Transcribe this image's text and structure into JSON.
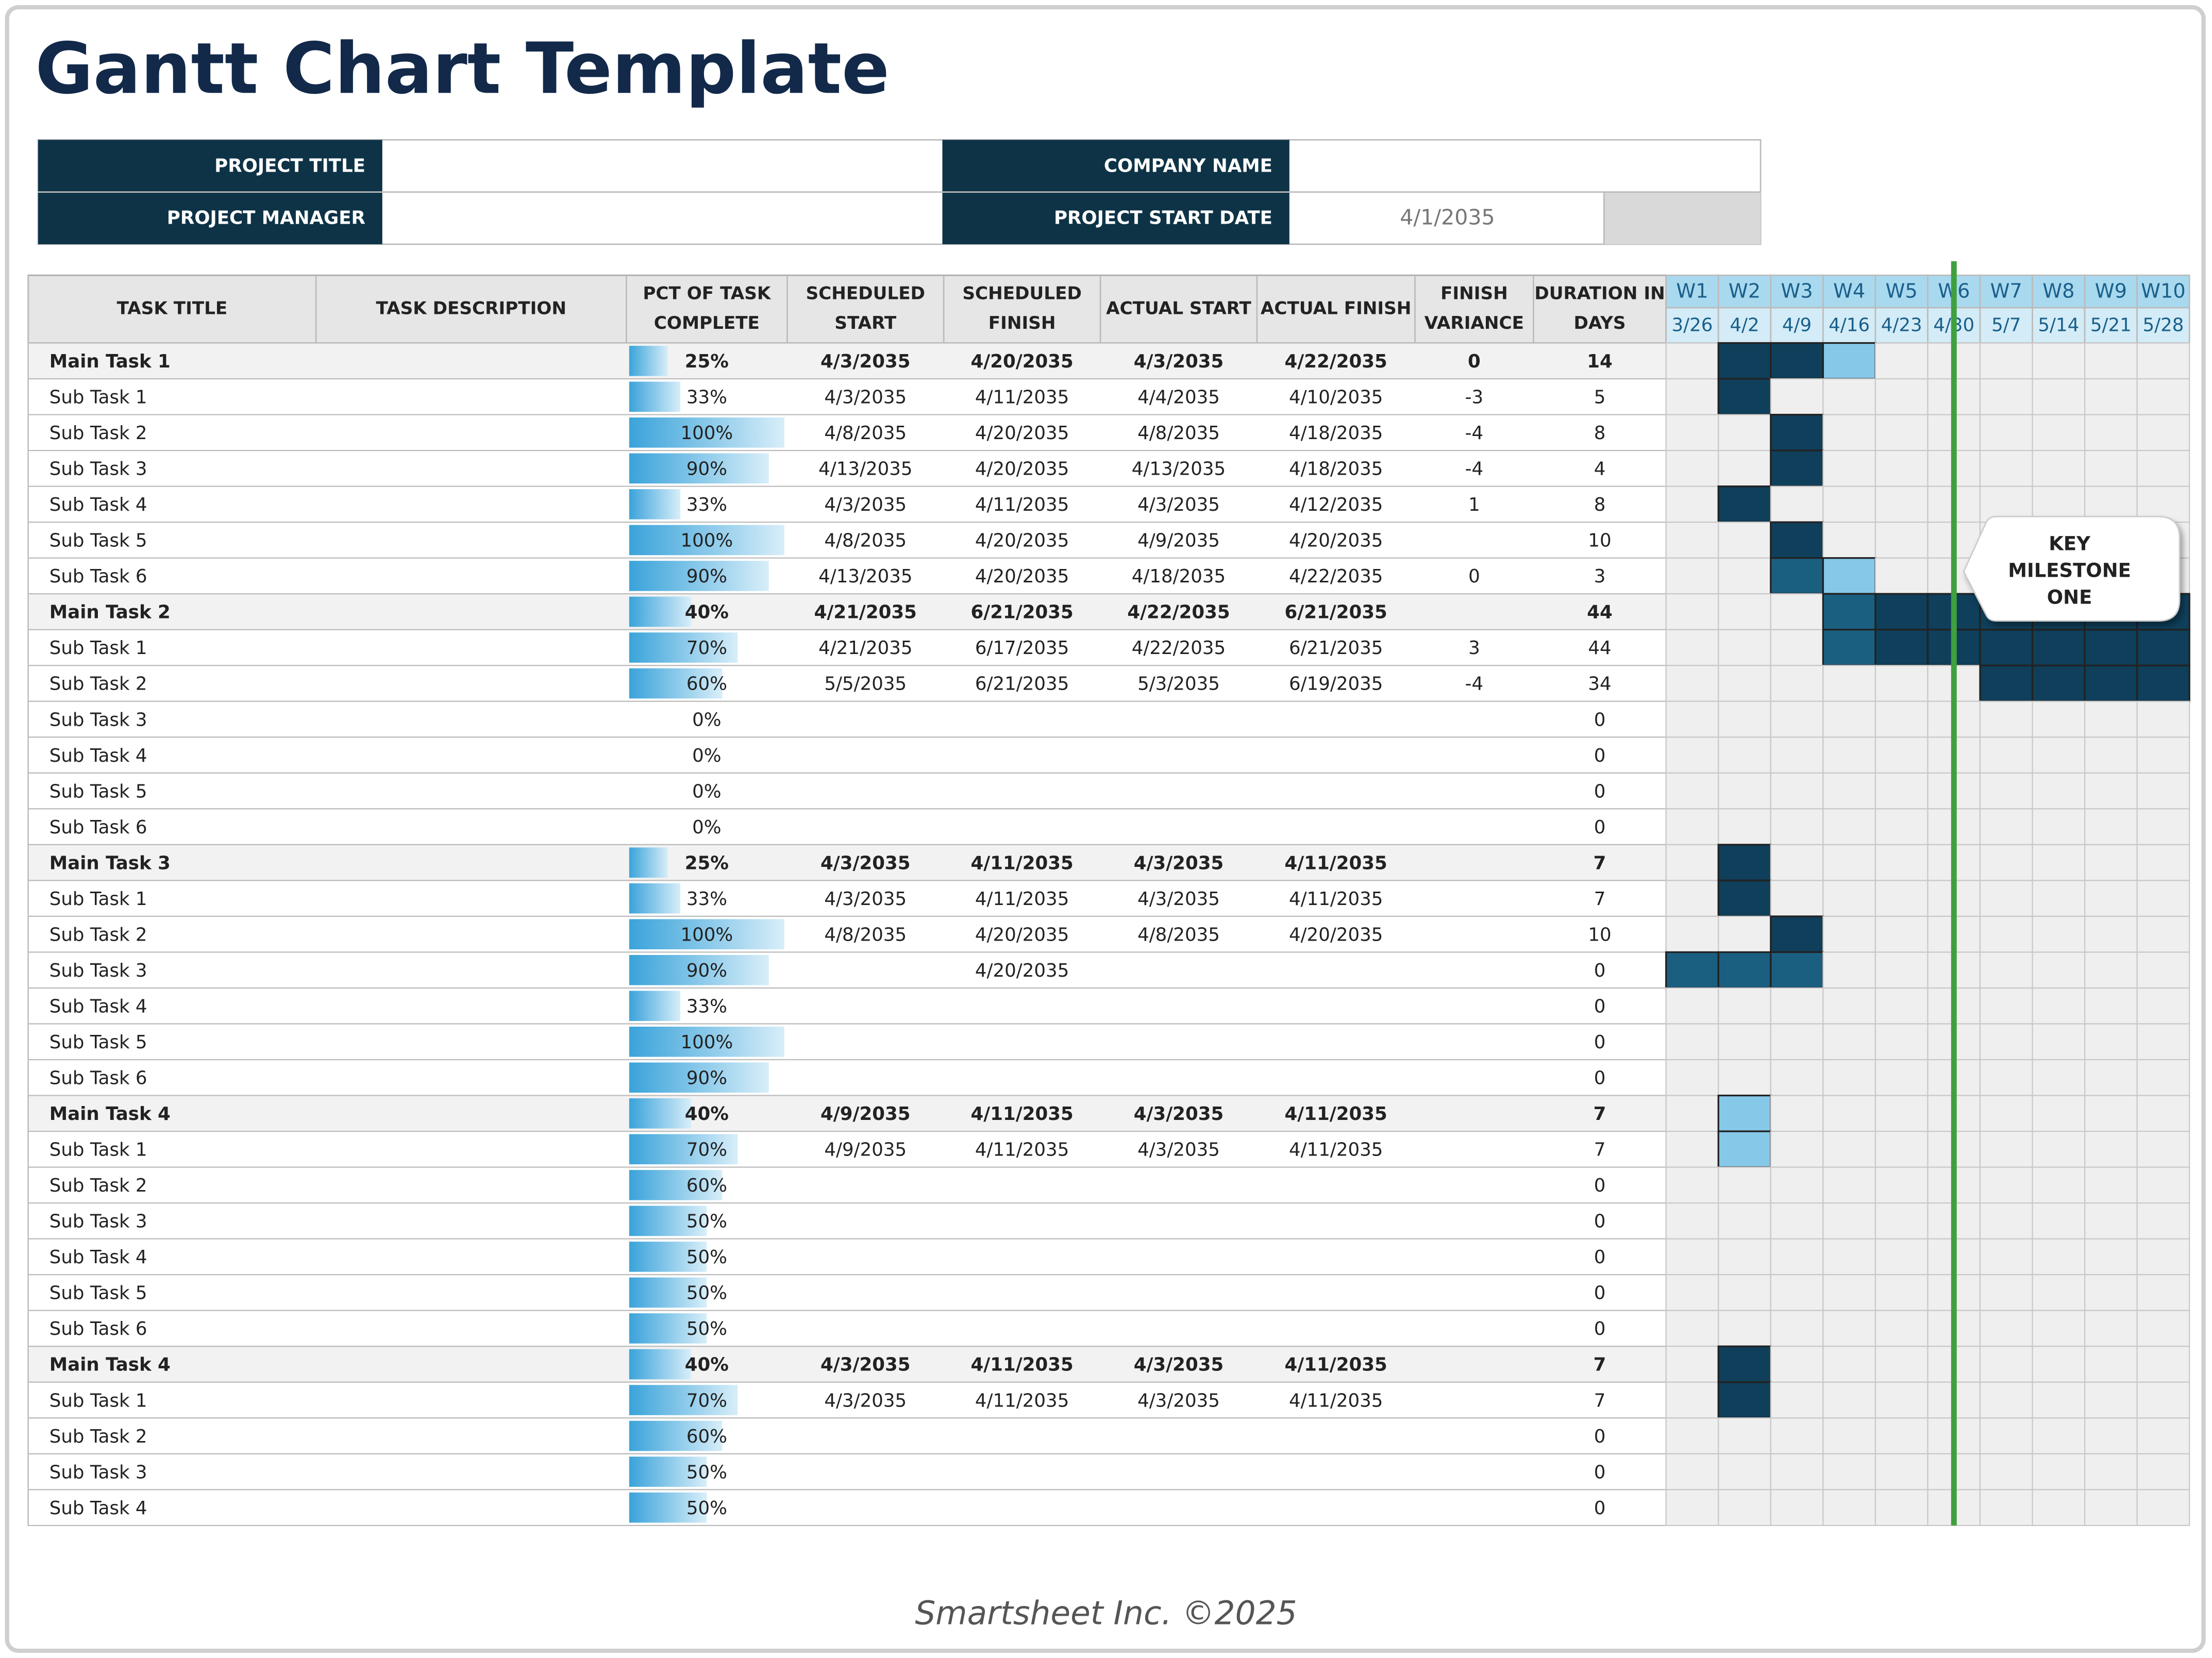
{
  "header": {
    "title": "Gantt Chart Template"
  },
  "project_info": {
    "project_title": {
      "label": "PROJECT TITLE",
      "value": null
    },
    "company_name": {
      "label": "COMPANY NAME",
      "value": null
    },
    "project_manager": {
      "label": "PROJECT MANAGER",
      "value": null
    },
    "project_start_date": {
      "label": "PROJECT START DATE",
      "value": "4/1/2035"
    }
  },
  "table": {
    "columns": [
      [
        "TASK TITLE"
      ],
      [
        "TASK DESCRIPTION"
      ],
      [
        "PCT OF TASK",
        "COMPLETE"
      ],
      [
        "SCHEDULED",
        "START"
      ],
      [
        "SCHEDULED",
        "FINISH"
      ],
      [
        "ACTUAL START"
      ],
      [
        "ACTUAL FINISH"
      ],
      [
        "FINISH",
        "VARIANCE"
      ],
      [
        "DURATION IN",
        "DAYS"
      ]
    ],
    "weeks": [
      {
        "label": "W1",
        "date": "3/26"
      },
      {
        "label": "W2",
        "date": "4/2"
      },
      {
        "label": "W3",
        "date": "4/9"
      },
      {
        "label": "W4",
        "date": "4/16"
      },
      {
        "label": "W5",
        "date": "4/23"
      },
      {
        "label": "W6",
        "date": "4/30"
      },
      {
        "label": "W7",
        "date": "5/7"
      },
      {
        "label": "W8",
        "date": "5/14"
      },
      {
        "label": "W9",
        "date": "5/21"
      },
      {
        "label": "W10",
        "date": "5/28"
      }
    ],
    "groups": [
      {
        "main": [
          "Main Task 1",
          null,
          "25%",
          "4/3/2035",
          "4/20/2035",
          "4/3/2035",
          "4/22/2035",
          0,
          14,
          [
            null,
            "#0f3f5a",
            "#0f3f5a",
            "#86c8e8",
            null,
            null,
            null,
            null,
            null,
            null
          ]
        ],
        "subs": [
          [
            "Sub Task 1",
            null,
            "33%",
            "4/3/2035",
            "4/11/2035",
            "4/4/2035",
            "4/10/2035",
            -3,
            5,
            [
              null,
              "#0f3f5a",
              null,
              null,
              null,
              null,
              null,
              null,
              null,
              null
            ]
          ],
          [
            "Sub Task 2",
            null,
            "100%",
            "4/8/2035",
            "4/20/2035",
            "4/8/2035",
            "4/18/2035",
            -4,
            8,
            [
              null,
              null,
              "#0f3f5a",
              null,
              null,
              null,
              null,
              null,
              null,
              null
            ]
          ],
          [
            "Sub Task 3",
            null,
            "90%",
            "4/13/2035",
            "4/20/2035",
            "4/13/2035",
            "4/18/2035",
            -4,
            4,
            [
              null,
              null,
              "#0f3f5a",
              null,
              null,
              null,
              null,
              null,
              null,
              null
            ]
          ],
          [
            "Sub Task 4",
            null,
            "33%",
            "4/3/2035",
            "4/11/2035",
            "4/3/2035",
            "4/12/2035",
            1,
            8,
            [
              null,
              "#0f3f5a",
              null,
              null,
              null,
              null,
              null,
              null,
              null,
              null
            ]
          ],
          [
            "Sub Task 5",
            null,
            "100%",
            "4/8/2035",
            "4/20/2035",
            "4/9/2035",
            "4/20/2035",
            null,
            10,
            [
              null,
              null,
              "#0f3f5a",
              null,
              null,
              null,
              null,
              null,
              null,
              null
            ]
          ],
          [
            "Sub Task 6",
            null,
            "90%",
            "4/13/2035",
            "4/20/2035",
            "4/18/2035",
            "4/22/2035",
            0,
            3,
            [
              null,
              null,
              "#1b5f80",
              "#86c8e8",
              null,
              null,
              null,
              null,
              null,
              null
            ]
          ]
        ]
      },
      {
        "main": [
          "Main Task 2",
          null,
          "40%",
          "4/21/2035",
          "6/21/2035",
          "4/22/2035",
          "6/21/2035",
          null,
          44,
          [
            null,
            null,
            null,
            "#1b5f80",
            "#0f3f5a",
            "#0f3f5a",
            "#0f3f5a",
            "#0f3f5a",
            "#0f3f5a",
            "#0f3f5a"
          ]
        ],
        "subs": [
          [
            "Sub Task 1",
            null,
            "70%",
            "4/21/2035",
            "6/17/2035",
            "4/22/2035",
            "6/21/2035",
            3,
            44,
            [
              null,
              null,
              null,
              "#1b5f80",
              "#0f3f5a",
              "#0f3f5a",
              "#0f3f5a",
              "#0f3f5a",
              "#0f3f5a",
              "#0f3f5a"
            ]
          ],
          [
            "Sub Task 2",
            null,
            "60%",
            "5/5/2035",
            "6/21/2035",
            "5/3/2035",
            "6/19/2035",
            -4,
            34,
            [
              null,
              null,
              null,
              null,
              null,
              null,
              "#0f3f5a",
              "#0f3f5a",
              "#0f3f5a",
              "#0f3f5a"
            ]
          ],
          [
            "Sub Task 3",
            null,
            "0%",
            null,
            null,
            null,
            null,
            null,
            0,
            [
              null,
              null,
              null,
              null,
              null,
              null,
              null,
              null,
              null,
              null
            ]
          ],
          [
            "Sub Task 4",
            null,
            "0%",
            null,
            null,
            null,
            null,
            null,
            0,
            [
              null,
              null,
              null,
              null,
              null,
              null,
              null,
              null,
              null,
              null
            ]
          ],
          [
            "Sub Task 5",
            null,
            "0%",
            null,
            null,
            null,
            null,
            null,
            0,
            [
              null,
              null,
              null,
              null,
              null,
              null,
              null,
              null,
              null,
              null
            ]
          ],
          [
            "Sub Task 6",
            null,
            "0%",
            null,
            null,
            null,
            null,
            null,
            0,
            [
              null,
              null,
              null,
              null,
              null,
              null,
              null,
              null,
              null,
              null
            ]
          ]
        ]
      },
      {
        "main": [
          "Main Task 3",
          null,
          "25%",
          "4/3/2035",
          "4/11/2035",
          "4/3/2035",
          "4/11/2035",
          null,
          7,
          [
            null,
            "#0f3f5a",
            null,
            null,
            null,
            null,
            null,
            null,
            null,
            null
          ]
        ],
        "subs": [
          [
            "Sub Task 1",
            null,
            "33%",
            "4/3/2035",
            "4/11/2035",
            "4/3/2035",
            "4/11/2035",
            null,
            7,
            [
              null,
              "#0f3f5a",
              null,
              null,
              null,
              null,
              null,
              null,
              null,
              null
            ]
          ],
          [
            "Sub Task 2",
            null,
            "100%",
            "4/8/2035",
            "4/20/2035",
            "4/8/2035",
            "4/20/2035",
            null,
            10,
            [
              null,
              null,
              "#0f3f5a",
              null,
              null,
              null,
              null,
              null,
              null,
              null
            ]
          ],
          [
            "Sub Task 3",
            null,
            "90%",
            null,
            "4/20/2035",
            null,
            null,
            null,
            0,
            [
              "#1b5f80",
              "#1b5f80",
              "#1b5f80",
              null,
              null,
              null,
              null,
              null,
              null,
              null
            ]
          ],
          [
            "Sub Task 4",
            null,
            "33%",
            null,
            null,
            null,
            null,
            null,
            0,
            [
              null,
              null,
              null,
              null,
              null,
              null,
              null,
              null,
              null,
              null
            ]
          ],
          [
            "Sub Task 5",
            null,
            "100%",
            null,
            null,
            null,
            null,
            null,
            0,
            [
              null,
              null,
              null,
              null,
              null,
              null,
              null,
              null,
              null,
              null
            ]
          ],
          [
            "Sub Task 6",
            null,
            "90%",
            null,
            null,
            null,
            null,
            null,
            0,
            [
              null,
              null,
              null,
              null,
              null,
              null,
              null,
              null,
              null,
              null
            ]
          ]
        ]
      },
      {
        "main": [
          "Main Task 4",
          null,
          "40%",
          "4/9/2035",
          "4/11/2035",
          "4/3/2035",
          "4/11/2035",
          null,
          7,
          [
            null,
            "#86c8e8",
            null,
            null,
            null,
            null,
            null,
            null,
            null,
            null
          ]
        ],
        "subs": [
          [
            "Sub Task 1",
            null,
            "70%",
            "4/9/2035",
            "4/11/2035",
            "4/3/2035",
            "4/11/2035",
            null,
            7,
            [
              null,
              "#86c8e8",
              null,
              null,
              null,
              null,
              null,
              null,
              null,
              null
            ]
          ],
          [
            "Sub Task 2",
            null,
            "60%",
            null,
            null,
            null,
            null,
            null,
            0,
            [
              null,
              null,
              null,
              null,
              null,
              null,
              null,
              null,
              null,
              null
            ]
          ],
          [
            "Sub Task 3",
            null,
            "50%",
            null,
            null,
            null,
            null,
            null,
            0,
            [
              null,
              null,
              null,
              null,
              null,
              null,
              null,
              null,
              null,
              null
            ]
          ],
          [
            "Sub Task 4",
            null,
            "50%",
            null,
            null,
            null,
            null,
            null,
            0,
            [
              null,
              null,
              null,
              null,
              null,
              null,
              null,
              null,
              null,
              null
            ]
          ],
          [
            "Sub Task 5",
            null,
            "50%",
            null,
            null,
            null,
            null,
            null,
            0,
            [
              null,
              null,
              null,
              null,
              null,
              null,
              null,
              null,
              null,
              null
            ]
          ],
          [
            "Sub Task 6",
            null,
            "50%",
            null,
            null,
            null,
            null,
            null,
            0,
            [
              null,
              null,
              null,
              null,
              null,
              null,
              null,
              null,
              null,
              null
            ]
          ]
        ]
      },
      {
        "main": [
          "Main Task 4",
          null,
          "40%",
          "4/3/2035",
          "4/11/2035",
          "4/3/2035",
          "4/11/2035",
          null,
          7,
          [
            null,
            "#0f3f5a",
            null,
            null,
            null,
            null,
            null,
            null,
            null,
            null
          ]
        ],
        "subs": [
          [
            "Sub Task 1",
            null,
            "70%",
            "4/3/2035",
            "4/11/2035",
            "4/3/2035",
            "4/11/2035",
            null,
            7,
            [
              null,
              "#0f3f5a",
              null,
              null,
              null,
              null,
              null,
              null,
              null,
              null
            ]
          ],
          [
            "Sub Task 2",
            null,
            "60%",
            null,
            null,
            null,
            null,
            null,
            0,
            [
              null,
              null,
              null,
              null,
              null,
              null,
              null,
              null,
              null,
              null
            ]
          ],
          [
            "Sub Task 3",
            null,
            "50%",
            null,
            null,
            null,
            null,
            null,
            0,
            [
              null,
              null,
              null,
              null,
              null,
              null,
              null,
              null,
              null,
              null
            ]
          ],
          [
            "Sub Task 4",
            null,
            "50%",
            null,
            null,
            null,
            null,
            null,
            0,
            [
              null,
              null,
              null,
              null,
              null,
              null,
              null,
              null,
              null,
              null
            ]
          ]
        ]
      }
    ]
  },
  "milestone": {
    "label": [
      "KEY",
      "MILESTONE",
      "ONE"
    ],
    "color": "#3fa03f"
  },
  "footer": {
    "text": "Smartsheet Inc. ©2025"
  }
}
